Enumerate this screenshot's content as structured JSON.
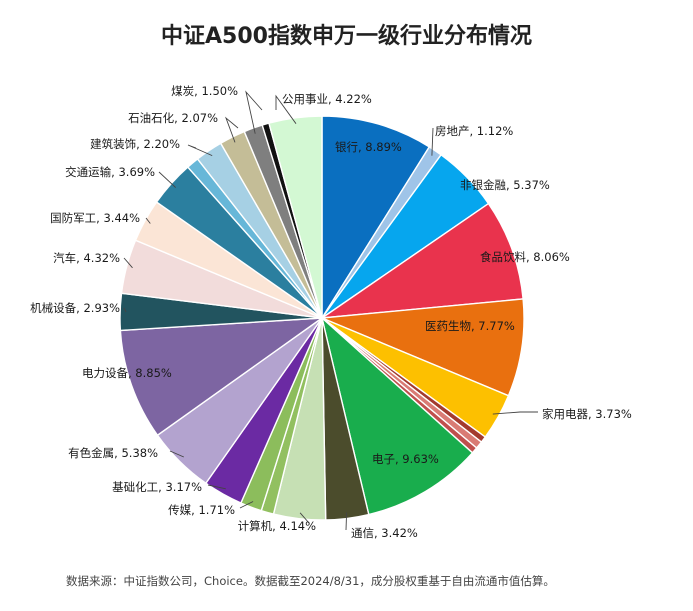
{
  "chart_data": {
    "type": "pie",
    "title": "中证A500指数申万一级行业分布情况",
    "slices": [
      {
        "label": "银行",
        "value": 8.89,
        "display": "8.89%",
        "color": "#0a6fc0"
      },
      {
        "label": "房地产",
        "value": 1.12,
        "display": "1.12%",
        "color": "#9fc4e8"
      },
      {
        "label": "非银金融",
        "value": 5.37,
        "display": "5.37%",
        "color": "#06a6ee"
      },
      {
        "label": "食品饮料",
        "value": 8.06,
        "display": "8.06%",
        "color": "#e9334d"
      },
      {
        "label": "医药生物",
        "value": 7.77,
        "display": "7.77%",
        "color": "#e9700f"
      },
      {
        "label": "家用电器",
        "value": 3.73,
        "display": "3.73%",
        "color": "#fdc000"
      },
      {
        "label": "",
        "value": 0.5,
        "display": "",
        "color": "#a33a2e"
      },
      {
        "label": "",
        "value": 0.6,
        "display": "",
        "color": "#d97b74"
      },
      {
        "label": "",
        "value": 0.5,
        "display": "",
        "color": "#c0504d"
      },
      {
        "label": "电子",
        "value": 9.63,
        "display": "9.63%",
        "color": "#19ad4d"
      },
      {
        "label": "通信",
        "value": 3.42,
        "display": "3.42%",
        "color": "#4b4c2c"
      },
      {
        "label": "计算机",
        "value": 4.14,
        "display": "4.14%",
        "color": "#c6e0b4"
      },
      {
        "label": "",
        "value": 1.0,
        "display": "",
        "color": "#92c060"
      },
      {
        "label": "传媒",
        "value": 1.71,
        "display": "1.71%",
        "color": "#8cbd5c"
      },
      {
        "label": "基础化工",
        "value": 3.17,
        "display": "3.17%",
        "color": "#6b2aa3"
      },
      {
        "label": "有色金属",
        "value": 5.38,
        "display": "5.38%",
        "color": "#b3a3cf"
      },
      {
        "label": "电力设备",
        "value": 8.85,
        "display": "8.85%",
        "color": "#7d65a2"
      },
      {
        "label": "机械设备",
        "value": 2.93,
        "display": "2.93%",
        "color": "#22545f"
      },
      {
        "label": "汽车",
        "value": 4.32,
        "display": "4.32%",
        "color": "#f2dcdb"
      },
      {
        "label": "国防军工",
        "value": 3.44,
        "display": "3.44%",
        "color": "#fbe5d6"
      },
      {
        "label": "交通运输",
        "value": 3.69,
        "display": "3.69%",
        "color": "#2b7f9f"
      },
      {
        "label": "",
        "value": 1.0,
        "display": "",
        "color": "#67b7d8"
      },
      {
        "label": "建筑装饰",
        "value": 2.2,
        "display": "2.20%",
        "color": "#a6d0e4"
      },
      {
        "label": "石油石化",
        "value": 2.07,
        "display": "2.07%",
        "color": "#c4bd97"
      },
      {
        "label": "煤炭",
        "value": 1.5,
        "display": "1.50%",
        "color": "#7f7f7f"
      },
      {
        "label": "",
        "value": 0.55,
        "display": "",
        "color": "#111111"
      },
      {
        "label": "公用事业",
        "value": 4.22,
        "display": "4.22%",
        "color": "#d3f8d3"
      }
    ]
  },
  "footnote": "数据来源：中证指数公司，Choice。数据截至2024/8/31，成分股权重基于自由流通市值估算。"
}
